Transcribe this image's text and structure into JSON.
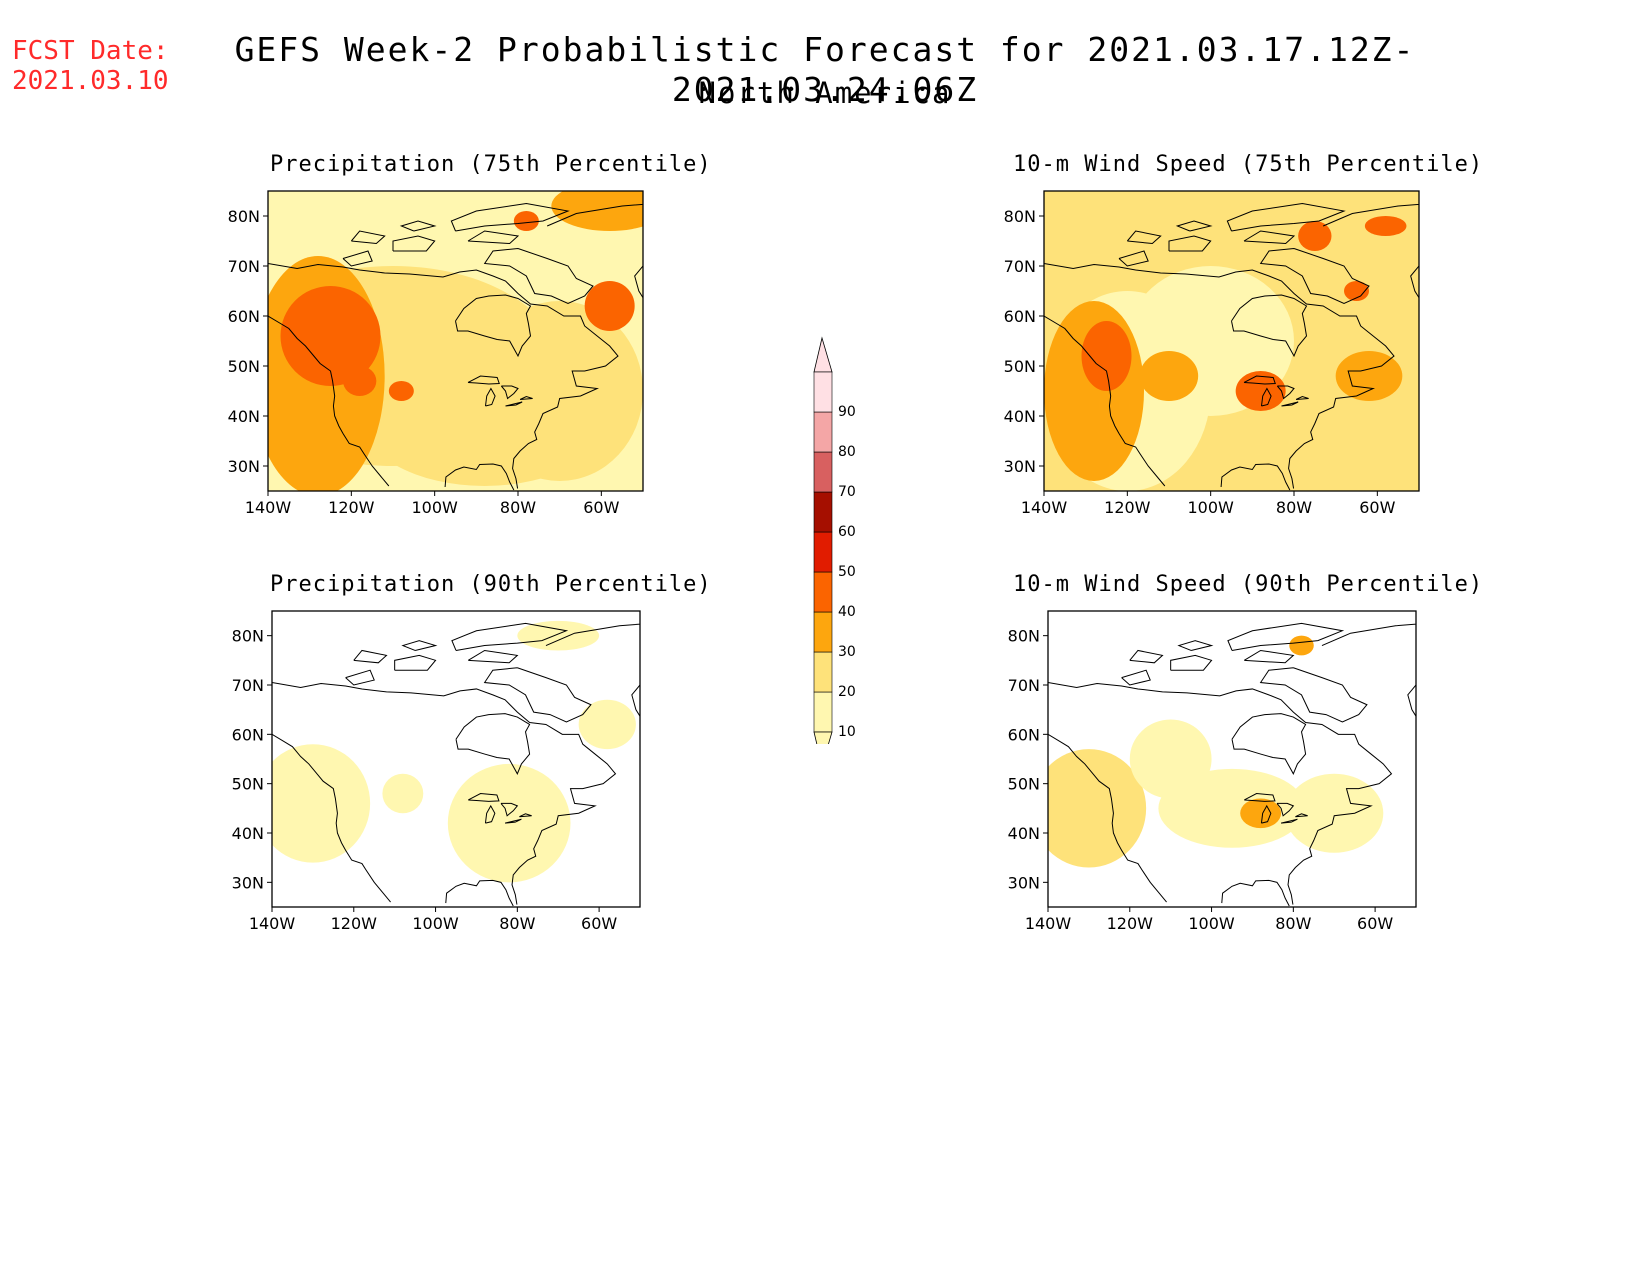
{
  "header": {
    "fcst_label": "FCST Date:",
    "fcst_date": "2021.03.10",
    "title": "GEFS Week-2 Probabilistic Forecast for 2021.03.17.12Z-2021.03.24.06Z",
    "subtitle": "North America"
  },
  "panels": [
    {
      "title": "Precipitation (75th Percentile)",
      "variable": "precipitation",
      "percentile": 75
    },
    {
      "title": "10-m Wind Speed (75th Percentile)",
      "variable": "wind",
      "percentile": 75
    },
    {
      "title": "Precipitation (90th Percentile)",
      "variable": "precipitation",
      "percentile": 90
    },
    {
      "title": "10-m Wind Speed (90th Percentile)",
      "variable": "wind",
      "percentile": 90
    }
  ],
  "axes": {
    "lat_labels": [
      "80N",
      "70N",
      "60N",
      "50N",
      "40N",
      "30N"
    ],
    "lon_labels": [
      "140W",
      "120W",
      "100W",
      "80W",
      "60W"
    ],
    "lat_range": [
      25,
      85
    ],
    "lon_range": [
      -140,
      -50
    ]
  },
  "colorbar": {
    "levels": [
      10,
      20,
      30,
      40,
      50,
      60,
      70,
      80,
      90
    ],
    "colors": [
      "#fff7b0",
      "#fee27a",
      "#fda60e",
      "#fb6400",
      "#e11c00",
      "#a50f00",
      "#d86060",
      "#f4a6a6",
      "#ffe0e4"
    ],
    "labels": [
      "10",
      "20",
      "30",
      "40",
      "50",
      "60",
      "70",
      "80",
      "90"
    ]
  }
}
